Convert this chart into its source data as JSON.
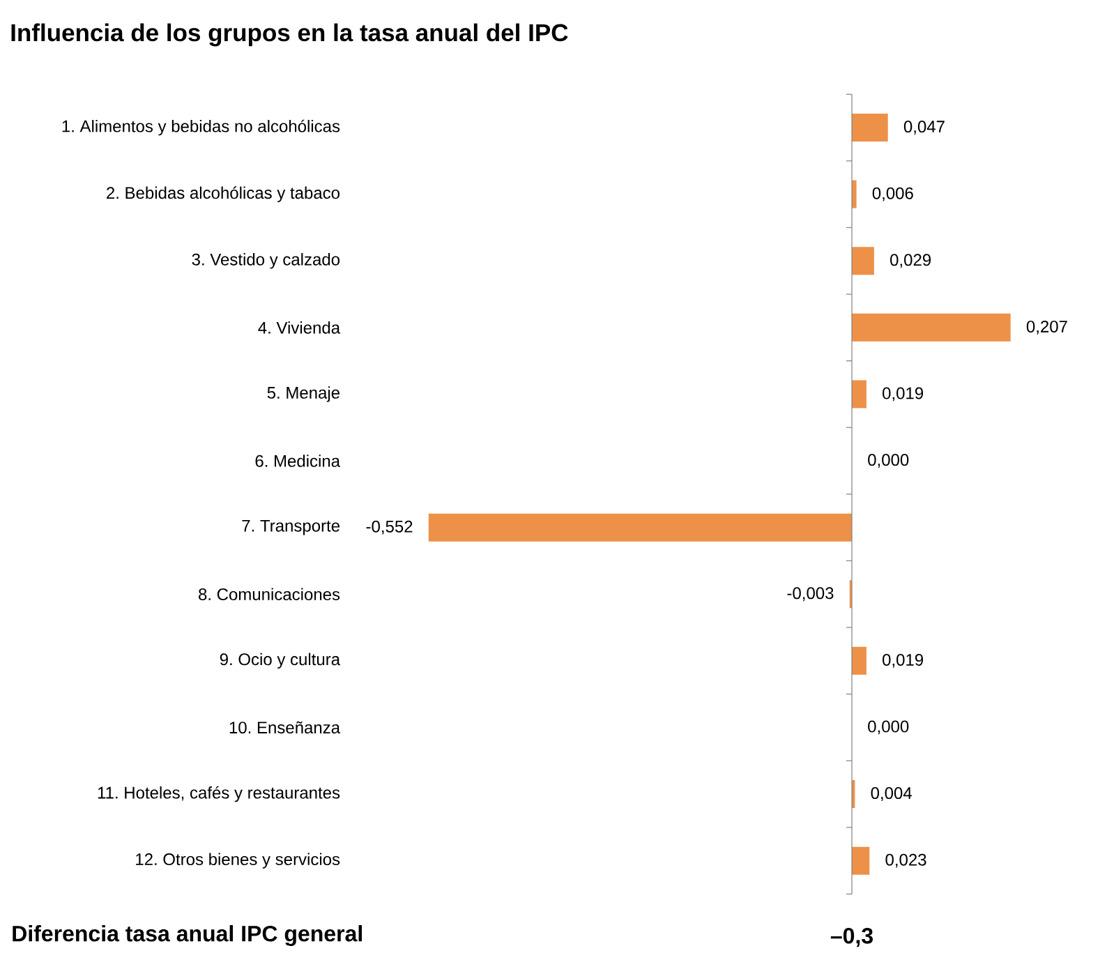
{
  "chart_data": {
    "type": "bar",
    "orientation": "horizontal",
    "title": "Influencia de los grupos en la tasa anual del IPC",
    "categories": [
      "1. Alimentos y bebidas no alcohólicas",
      "2. Bebidas alcohólicas y tabaco",
      "3. Vestido y calzado",
      "4. Vivienda",
      "5. Menaje",
      "6. Medicina",
      "7. Transporte",
      "8. Comunicaciones",
      "9. Ocio y cultura",
      "10. Enseñanza",
      "11. Hoteles, cafés y restaurantes",
      "12. Otros bienes y servicios"
    ],
    "values": [
      0.047,
      0.006,
      0.029,
      0.207,
      0.019,
      0.0,
      -0.552,
      -0.003,
      0.019,
      0.0,
      0.004,
      0.023
    ],
    "value_labels": [
      "0,047",
      "0,006",
      "0,029",
      "0,207",
      "0,019",
      "0,000",
      "-0,552",
      "-0,003",
      "0,019",
      "0,000",
      "0,004",
      "0,023"
    ],
    "color": "#ed9149",
    "annotations": [
      "Diferencia tasa anual IPC general",
      "–0,3"
    ]
  }
}
